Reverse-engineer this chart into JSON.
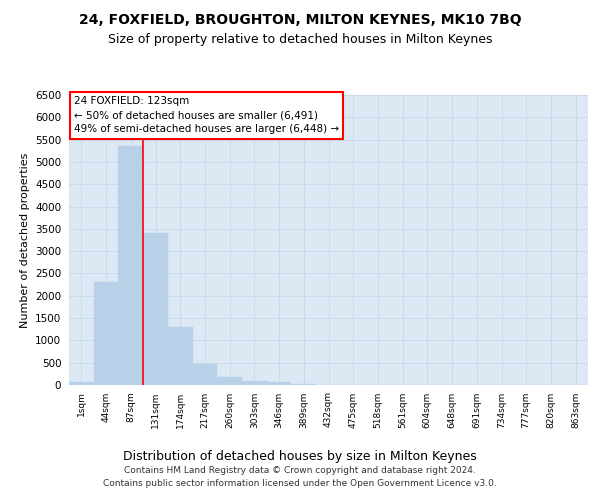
{
  "title": "24, FOXFIELD, BROUGHTON, MILTON KEYNES, MK10 7BQ",
  "subtitle": "Size of property relative to detached houses in Milton Keynes",
  "xlabel": "Distribution of detached houses by size in Milton Keynes",
  "ylabel": "Number of detached properties",
  "categories": [
    "1sqm",
    "44sqm",
    "87sqm",
    "131sqm",
    "174sqm",
    "217sqm",
    "260sqm",
    "303sqm",
    "346sqm",
    "389sqm",
    "432sqm",
    "475sqm",
    "518sqm",
    "561sqm",
    "604sqm",
    "648sqm",
    "691sqm",
    "734sqm",
    "777sqm",
    "820sqm",
    "863sqm"
  ],
  "values": [
    70,
    2300,
    5350,
    3400,
    1300,
    480,
    180,
    90,
    70,
    30,
    10,
    5,
    0,
    0,
    0,
    0,
    0,
    0,
    0,
    0,
    0
  ],
  "bar_color": "#b8d0e8",
  "red_line_x": 3,
  "annotation_title": "24 FOXFIELD: 123sqm",
  "annotation_line1": "← 50% of detached houses are smaller (6,491)",
  "annotation_line2": "49% of semi-detached houses are larger (6,448) →",
  "ylim_max": 6500,
  "yticks": [
    0,
    500,
    1000,
    1500,
    2000,
    2500,
    3000,
    3500,
    4000,
    4500,
    5000,
    5500,
    6000,
    6500
  ],
  "grid_color": "#c8d8e8",
  "plot_bg_color": "#dce8f4",
  "title_fontsize": 10,
  "subtitle_fontsize": 9,
  "footer_line1": "Contains HM Land Registry data © Crown copyright and database right 2024.",
  "footer_line2": "Contains public sector information licensed under the Open Government Licence v3.0."
}
